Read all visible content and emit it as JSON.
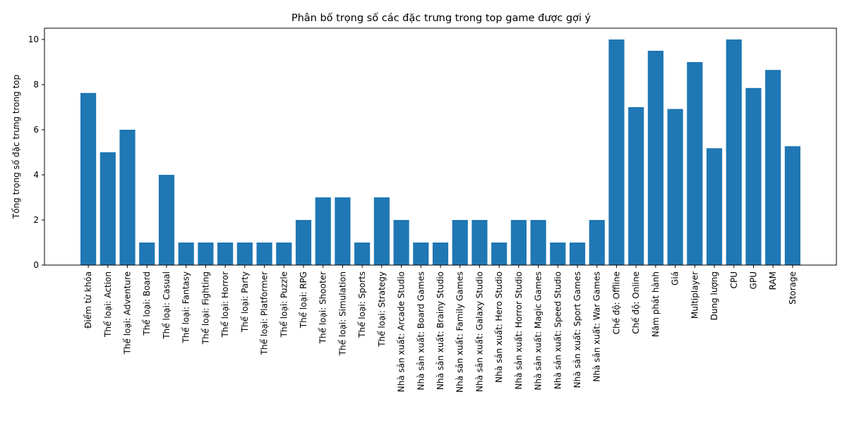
{
  "chart_data": {
    "type": "bar",
    "title": "Phân bố trọng số các đặc trưng trong top game được gợi ý",
    "xlabel": "",
    "ylabel": "Tổng trọng số đặc trưng trong top",
    "ylim": [
      0,
      10.5
    ],
    "yticks": [
      0,
      2,
      4,
      6,
      8,
      10
    ],
    "grid": false,
    "bar_color": "#1f77b4",
    "categories": [
      "Điểm từ khóa",
      "Thể loại: Action",
      "Thể loại: Adventure",
      "Thể loại: Board",
      "Thể loại: Casual",
      "Thể loại: Fantasy",
      "Thể loại: Fighting",
      "Thể loại: Horror",
      "Thể loại: Party",
      "Thể loại: Platformer",
      "Thể loại: Puzzle",
      "Thể loại: RPG",
      "Thể loại: Shooter",
      "Thể loại: Simulation",
      "Thể loại: Sports",
      "Thể loại: Strategy",
      "Nhà sản xuất: Arcade Studio",
      "Nhà sản xuất: Board Games",
      "Nhà sản xuất: Brainy Studio",
      "Nhà sản xuất: Family Games",
      "Nhà sản xuất: Galaxy Studio",
      "Nhà sản xuất: Hero Studio",
      "Nhà sản xuất: Horror Studio",
      "Nhà sản xuất: Magic Games",
      "Nhà sản xuất: Speed Studio",
      "Nhà sản xuất: Sport Games",
      "Nhà sản xuất: War Games",
      "Chế độ: Offline",
      "Chế độ: Online",
      "Năm phát hành",
      "Giá",
      "Multiplayer",
      "Dung lượng",
      "CPU",
      "GPU",
      "RAM",
      "Storage"
    ],
    "values": [
      7.63,
      5.0,
      6.0,
      1.0,
      4.0,
      1.0,
      1.0,
      1.0,
      1.0,
      1.0,
      1.0,
      2.0,
      3.0,
      3.0,
      1.0,
      3.0,
      2.0,
      1.0,
      1.0,
      2.0,
      2.0,
      1.0,
      2.0,
      2.0,
      1.0,
      1.0,
      2.0,
      10.0,
      7.0,
      9.5,
      6.92,
      9.0,
      5.18,
      10.0,
      7.85,
      8.65,
      5.27
    ]
  }
}
